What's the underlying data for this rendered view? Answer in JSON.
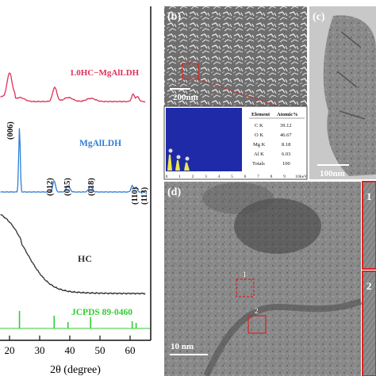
{
  "panel_a": {
    "xlabel": "2θ (degree)",
    "x_ticks": [
      "20",
      "30",
      "40",
      "50",
      "60"
    ],
    "labels": {
      "hc_mgal": "1.0HC−MgAlLDH",
      "mgal": "MgAlLDH",
      "hc": "HC",
      "jcpds": "JCPDS 89-0460"
    },
    "peak_labels": [
      "(006)",
      "(012)",
      "(015)",
      "(018)",
      "(110)",
      "(113)"
    ],
    "colors": {
      "hc_mgal": "#e0305a",
      "mgal": "#2f7fd6",
      "hc": "#333333",
      "jcpds": "#33cc33"
    }
  },
  "panel_b": {
    "tag": "(b)",
    "scale_bar": "200nm",
    "eds_table": {
      "headers": [
        "Element",
        "Atomic%"
      ],
      "rows": [
        [
          "C K",
          "39.12"
        ],
        [
          "O K",
          "46.67"
        ],
        [
          "Mg K",
          "8.18"
        ],
        [
          "Al K",
          "6.03"
        ],
        [
          "Totals",
          "100"
        ]
      ]
    },
    "eds_axis_ticks": [
      "0",
      "1",
      "2",
      "3",
      "4",
      "5",
      "6",
      "7",
      "8",
      "9",
      "10"
    ],
    "eds_unit": "keV"
  },
  "panel_c": {
    "tag": "(c)",
    "scale_bar": "100nm"
  },
  "panel_d": {
    "tag": "(d)",
    "scale_bar": "10 nm",
    "boxes": [
      "1",
      "2"
    ]
  },
  "panel_e": {
    "labels": [
      "1",
      "2"
    ]
  }
}
